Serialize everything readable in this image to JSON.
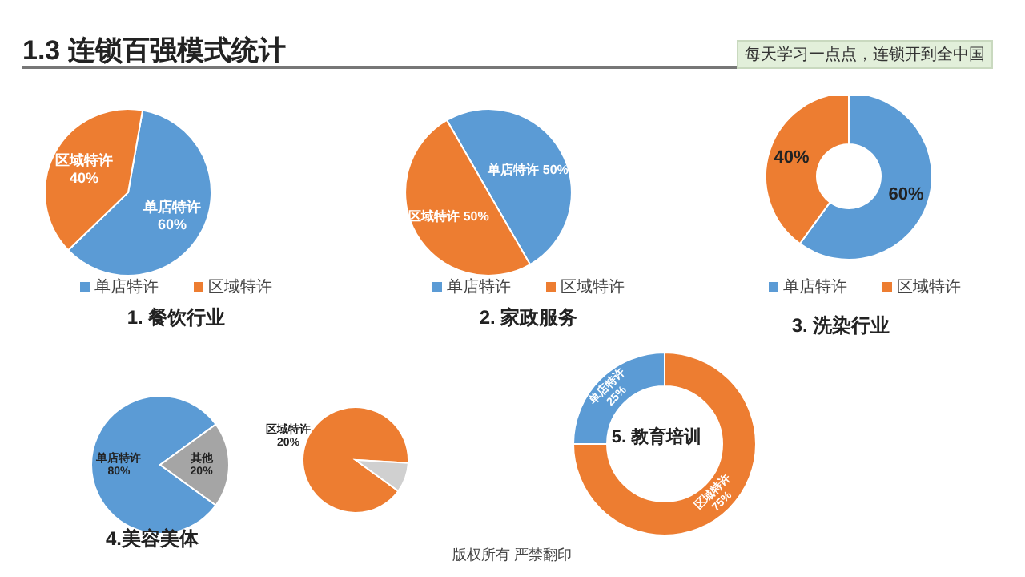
{
  "chart_data": [
    {
      "type": "pie",
      "title": "1. 餐饮行业",
      "categories": [
        "单店特许",
        "区域特许"
      ],
      "values": [
        60,
        40
      ],
      "colors": [
        "#5b9bd5",
        "#ed7d31"
      ],
      "value_labels": [
        "60%",
        "40%"
      ],
      "legend": "bottom",
      "annotations": [
        "1.3  连锁百强模式统计",
        "每天学习一点点，连锁开到全中国",
        "版权所有  严禁翻印"
      ]
    },
    {
      "type": "pie",
      "title": "2. 家政服务",
      "categories": [
        "单店特许",
        "区域特许"
      ],
      "values": [
        50,
        50
      ],
      "colors": [
        "#5b9bd5",
        "#ed7d31"
      ],
      "value_labels": [
        "50%",
        "50%"
      ],
      "legend": "bottom"
    },
    {
      "type": "donut",
      "title": "3. 洗染行业",
      "categories": [
        "单店特许",
        "区域特许"
      ],
      "values": [
        60,
        40
      ],
      "colors": [
        "#5b9bd5",
        "#ed7d31"
      ],
      "value_labels": [
        "60%",
        "40%"
      ],
      "legend": "bottom"
    },
    {
      "type": "pie",
      "title": "4.美容美体",
      "categories": [
        "单店特许",
        "其他"
      ],
      "values": [
        80,
        20
      ],
      "colors": [
        "#5b9bd5",
        "#a5a5a5"
      ],
      "value_labels": [
        "80%",
        "20%"
      ]
    },
    {
      "type": "pie",
      "categories": [
        "区域特许",
        null
      ],
      "values": [
        20,
        2
      ],
      "colors": [
        "#ed7d31",
        "#d0d0d0"
      ],
      "value_labels": [
        "20%",
        null
      ]
    },
    {
      "type": "donut",
      "title": "5. 教育培训",
      "categories": [
        "单店特许",
        "区域特许"
      ],
      "values": [
        25,
        75
      ],
      "colors": [
        "#5b9bd5",
        "#ed7d31"
      ],
      "value_labels": [
        "25%",
        "75%"
      ]
    }
  ]
}
